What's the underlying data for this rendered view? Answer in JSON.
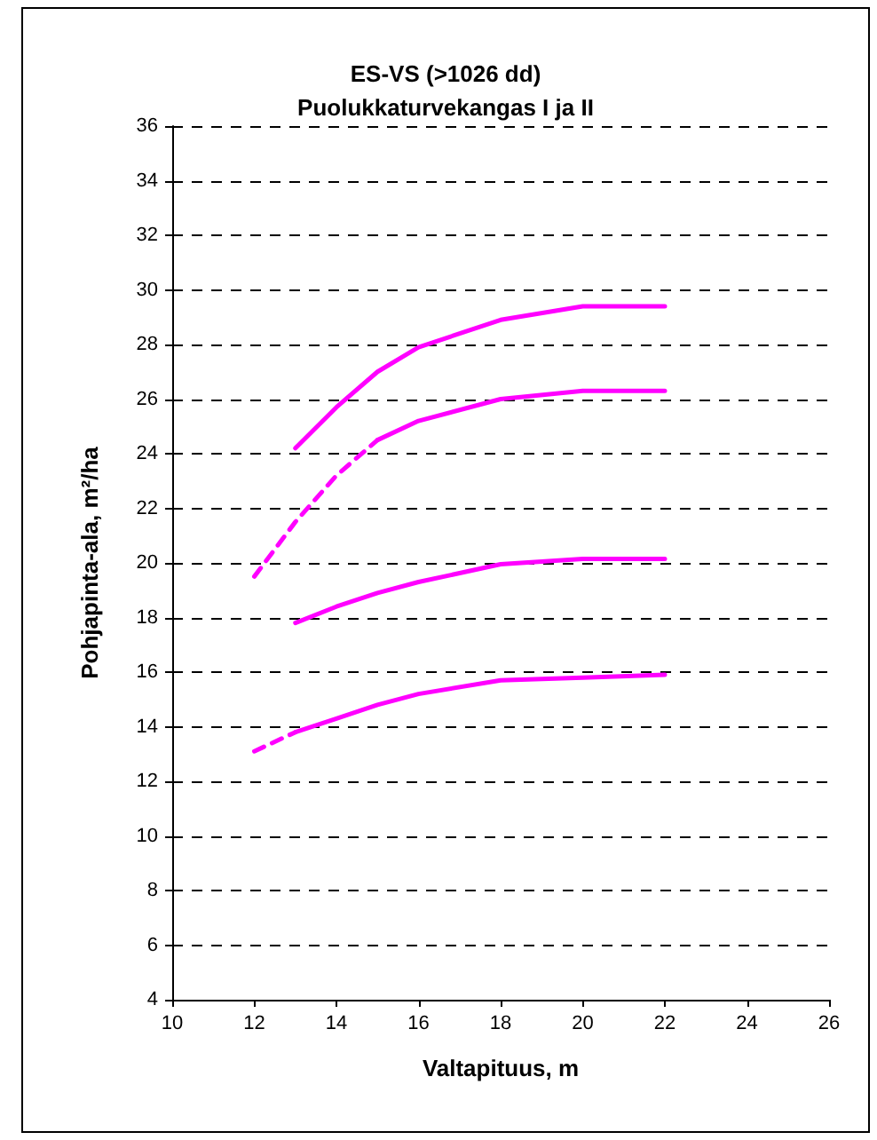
{
  "chart_data": {
    "type": "line",
    "title": "ES-VS (>1026 dd)",
    "subtitle": "Puolukkaturvekangas I ja II",
    "xlabel": "Valtapituus, m",
    "ylabel": "Pohjapinta-ala, m²/ha",
    "xlim": [
      10,
      26
    ],
    "xticks": [
      10,
      12,
      14,
      16,
      18,
      20,
      22,
      24,
      26
    ],
    "ylim": [
      4,
      36
    ],
    "yticks": [
      4,
      6,
      8,
      10,
      12,
      14,
      16,
      18,
      20,
      22,
      24,
      26,
      28,
      30,
      32,
      34,
      36
    ],
    "grid": "y",
    "marker": "none",
    "line_style": "solid",
    "series": [
      {
        "color": "#ff00ff",
        "x": [
          13,
          14,
          15,
          16,
          18,
          20,
          22
        ],
        "values": [
          24.2,
          25.7,
          27.0,
          27.9,
          28.9,
          29.4,
          29.4
        ]
      },
      {
        "color": "#ff00ff",
        "x": [
          12,
          13,
          14,
          15
        ],
        "values": [
          19.5,
          21.5,
          23.2,
          24.5
        ],
        "line_style": "dashed"
      },
      {
        "color": "#ff00ff",
        "x": [
          15,
          16,
          18,
          20,
          22
        ],
        "values": [
          24.5,
          25.2,
          26.0,
          26.3,
          26.3
        ]
      },
      {
        "color": "#ff00ff",
        "x": [
          13,
          14,
          15,
          16,
          18,
          20,
          22
        ],
        "values": [
          17.8,
          18.4,
          18.9,
          19.3,
          19.95,
          20.15,
          20.15
        ]
      },
      {
        "color": "#ff00ff",
        "x": [
          12,
          13
        ],
        "values": [
          13.1,
          13.8
        ],
        "line_style": "dashed"
      },
      {
        "color": "#ff00ff",
        "x": [
          13,
          14,
          15,
          16,
          18,
          20,
          22
        ],
        "values": [
          13.8,
          14.3,
          14.8,
          15.2,
          15.7,
          15.8,
          15.9
        ]
      }
    ]
  }
}
